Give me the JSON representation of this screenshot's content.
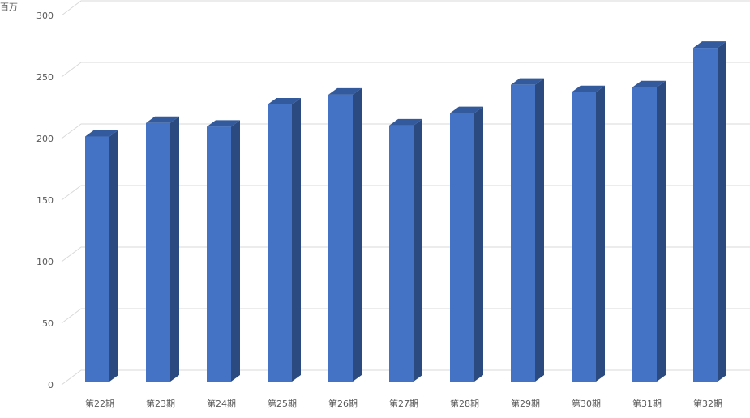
{
  "chart_data": {
    "type": "bar",
    "style": "3d-column",
    "unit_label": "百万",
    "categories": [
      "第22期",
      "第23期",
      "第24期",
      "第25期",
      "第26期",
      "第27期",
      "第28期",
      "第29期",
      "第30期",
      "第31期",
      "第32期"
    ],
    "values": [
      199,
      210,
      207,
      225,
      233,
      208,
      218,
      241,
      235,
      239,
      271
    ],
    "ylim": [
      0,
      300
    ],
    "yticks": [
      0,
      50,
      100,
      150,
      200,
      250,
      300
    ],
    "grid": true,
    "legend": "none",
    "colors": {
      "front": "#4472c4",
      "side": "#2b4a80",
      "top": "#335a9c",
      "grid": "#d9d9d9"
    }
  }
}
